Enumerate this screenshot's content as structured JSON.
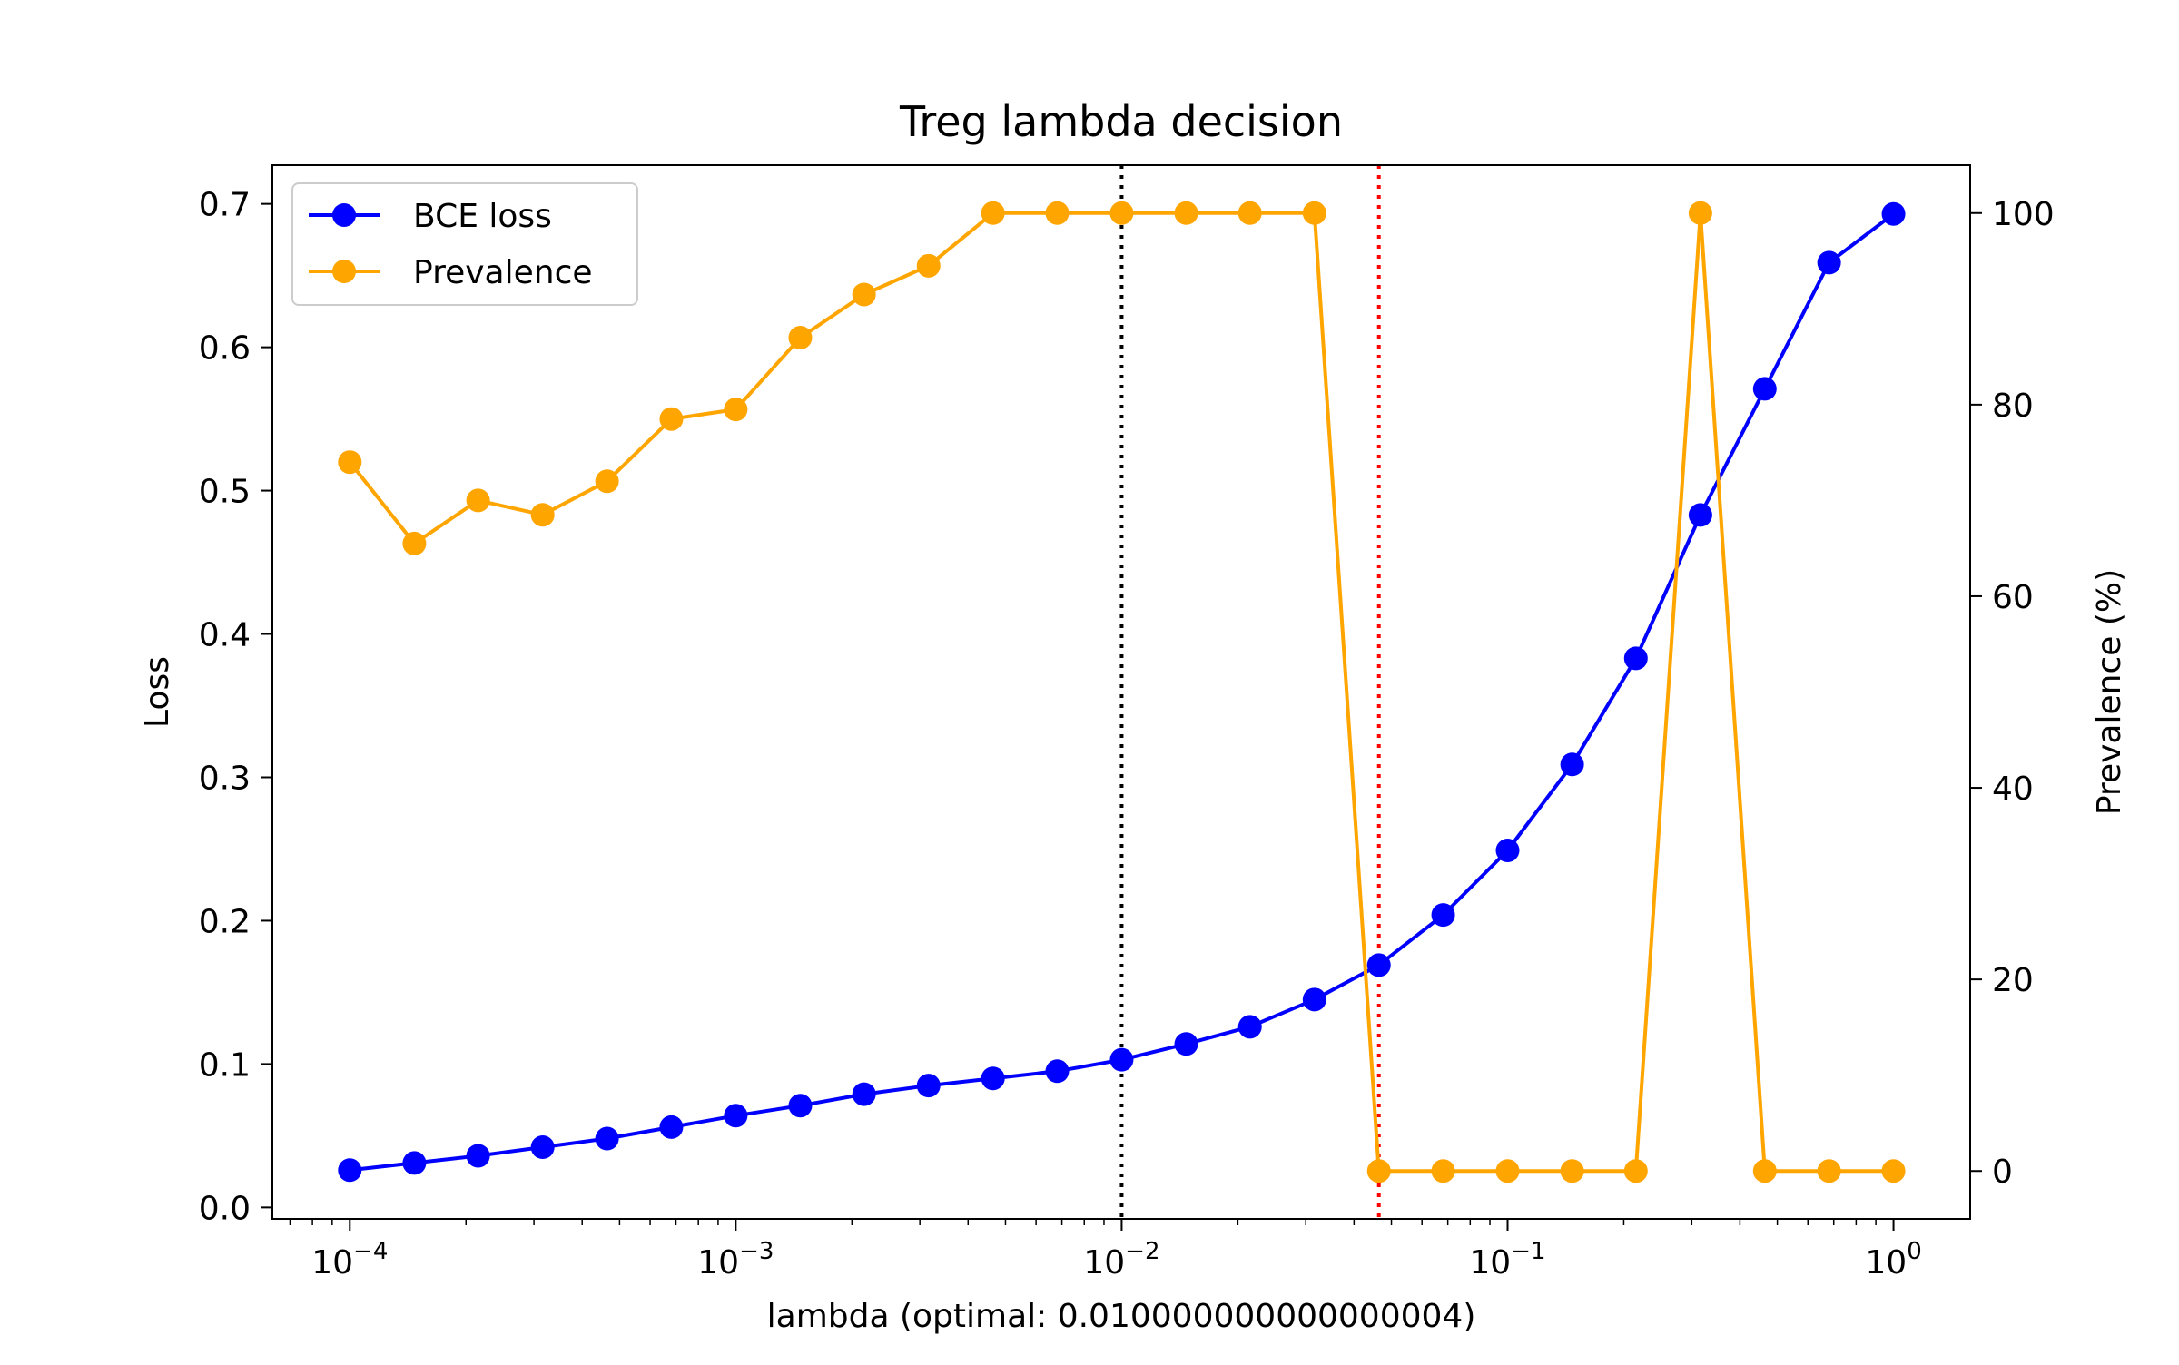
{
  "chart_data": {
    "type": "line",
    "title": "Treg lambda decision",
    "xlabel": "lambda (optimal: 0.010000000000000004)",
    "ylabel": "Loss",
    "y2label": "Prevalence (%)",
    "xscale": "log",
    "xlim": [
      6.3e-05,
      1.58
    ],
    "ylim": [
      -0.008,
      0.727
    ],
    "y2lim": [
      -5,
      105
    ],
    "x_ticks": [
      {
        "value": 0.0001,
        "base": "10",
        "exp": "−4"
      },
      {
        "value": 0.001,
        "base": "10",
        "exp": "−3"
      },
      {
        "value": 0.01,
        "base": "10",
        "exp": "−2"
      },
      {
        "value": 0.1,
        "base": "10",
        "exp": "−1"
      },
      {
        "value": 1,
        "base": "10",
        "exp": "0"
      }
    ],
    "y_ticks": [
      "0.0",
      "0.1",
      "0.2",
      "0.3",
      "0.4",
      "0.5",
      "0.6",
      "0.7"
    ],
    "y2_ticks": [
      "0",
      "20",
      "40",
      "60",
      "80",
      "100"
    ],
    "grid": false,
    "legend_position": "top-left",
    "x": [
      0.0001,
      0.000147,
      0.000215,
      0.000316,
      0.000464,
      0.000681,
      0.001,
      0.00147,
      0.00215,
      0.00316,
      0.00464,
      0.00681,
      0.01,
      0.0147,
      0.0215,
      0.0316,
      0.0464,
      0.0681,
      0.1,
      0.147,
      0.215,
      0.316,
      0.464,
      0.681,
      1
    ],
    "series": [
      {
        "name": "BCE loss",
        "axis": "left",
        "color": "#0000ff",
        "values": [
          0.026,
          0.031,
          0.036,
          0.042,
          0.048,
          0.056,
          0.064,
          0.071,
          0.079,
          0.085,
          0.09,
          0.095,
          0.103,
          0.114,
          0.126,
          0.145,
          0.169,
          0.204,
          0.249,
          0.309,
          0.383,
          0.483,
          0.571,
          0.659,
          0.693
        ]
      },
      {
        "name": "Prevalence",
        "axis": "right",
        "color": "#ffa500",
        "values": [
          74,
          65.5,
          70,
          68.5,
          72,
          78.5,
          79.5,
          87,
          91.5,
          94.5,
          100,
          100,
          100,
          100,
          100,
          100,
          0,
          0,
          0,
          0,
          0,
          100,
          0,
          0,
          0
        ]
      }
    ],
    "vlines": [
      {
        "x": 0.01,
        "color": "#000000",
        "style": "dotted"
      },
      {
        "x": 0.0464,
        "color": "#ff0000",
        "style": "dotted"
      }
    ]
  }
}
